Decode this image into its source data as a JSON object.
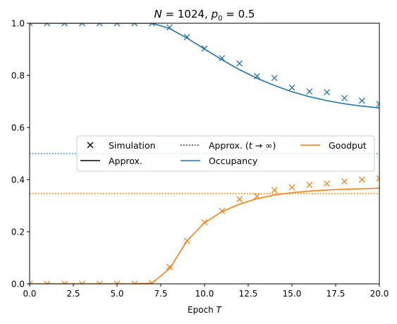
{
  "chart_data": {
    "type": "line",
    "title": "N = 1024, p₀ = 0.5",
    "title_parts": {
      "n_label": "N",
      "n_value": "1024",
      "p_label": "p",
      "p_sub": "0",
      "p_value": "0.5"
    },
    "xlabel": "Epoch T",
    "xlabel_parts": {
      "text": "Epoch ",
      "var": "T"
    },
    "ylabel": "",
    "xlim": [
      0,
      20
    ],
    "ylim": [
      0,
      1
    ],
    "xticks": [
      0.0,
      2.5,
      5.0,
      7.5,
      10.0,
      12.5,
      15.0,
      17.5,
      20.0
    ],
    "xtick_labels": [
      "0.0",
      "2.5",
      "5.0",
      "7.5",
      "10.0",
      "12.5",
      "15.0",
      "17.5",
      "20.0"
    ],
    "yticks": [
      0.0,
      0.2,
      0.4,
      0.6,
      0.8,
      1.0
    ],
    "ytick_labels": [
      "0.0",
      "0.2",
      "0.4",
      "0.6",
      "0.8",
      "1.0"
    ],
    "grid": false,
    "colors": {
      "occupancy": "#1f77b4",
      "goodput": "#ff7f0e",
      "neutral": "#000000"
    },
    "series": [
      {
        "name": "Occupancy",
        "color": "#1f77b4",
        "simulation": {
          "x": [
            0,
            1,
            2,
            3,
            4,
            5,
            6,
            7,
            8,
            9,
            10,
            11,
            12,
            13,
            14,
            15,
            16,
            17,
            18,
            19,
            20
          ],
          "y": [
            1.0,
            1.0,
            1.0,
            1.0,
            1.0,
            1.0,
            1.0,
            1.0,
            0.984,
            0.947,
            0.903,
            0.866,
            0.846,
            0.797,
            0.79,
            0.753,
            0.738,
            0.735,
            0.713,
            0.703,
            0.69
          ]
        },
        "approx": {
          "x": [
            0,
            1,
            2,
            3,
            4,
            5,
            6,
            7,
            8,
            9,
            10,
            11,
            12,
            13,
            14,
            15,
            16,
            17,
            18,
            19,
            20
          ],
          "y": [
            1.0,
            1.0,
            1.0,
            1.0,
            1.0,
            1.0,
            1.0,
            1.0,
            0.98,
            0.943,
            0.901,
            0.86,
            0.822,
            0.789,
            0.761,
            0.737,
            0.718,
            0.703,
            0.691,
            0.682,
            0.675
          ]
        },
        "asymptote": 0.5
      },
      {
        "name": "Goodput",
        "color": "#ff7f0e",
        "simulation": {
          "x": [
            0,
            1,
            2,
            3,
            4,
            5,
            6,
            7,
            8,
            9,
            10,
            11,
            12,
            13,
            14,
            15,
            16,
            17,
            18,
            19,
            20
          ],
          "y": [
            0.0,
            0.0,
            0.0,
            0.0,
            0.0,
            0.0,
            0.0,
            0.003,
            0.065,
            0.165,
            0.236,
            0.28,
            0.325,
            0.336,
            0.36,
            0.37,
            0.38,
            0.385,
            0.393,
            0.4,
            0.405
          ]
        },
        "approx": {
          "x": [
            0,
            1,
            2,
            3,
            4,
            5,
            6,
            7,
            8,
            9,
            10,
            11,
            12,
            13,
            14,
            15,
            16,
            17,
            18,
            19,
            20
          ],
          "y": [
            0.0,
            0.0,
            0.0,
            0.0,
            0.0,
            0.0,
            0.0,
            0.003,
            0.058,
            0.165,
            0.235,
            0.277,
            0.306,
            0.327,
            0.341,
            0.35,
            0.356,
            0.36,
            0.363,
            0.365,
            0.367
          ]
        },
        "asymptote": 0.346
      }
    ],
    "legend": {
      "placement": "center",
      "ncol": 3,
      "items": [
        {
          "label": "Simulation",
          "style": "marker-x"
        },
        {
          "label": "Approx.",
          "style": "solid"
        },
        {
          "label": "Approx. (t → ∞)",
          "style": "dotted",
          "parts": {
            "text": "Approx. (",
            "var": "t",
            "arrow": " → ∞)"
          }
        },
        {
          "label": "Occupancy",
          "style": "solid",
          "color": "#1f77b4"
        },
        {
          "label": "Goodput",
          "style": "solid",
          "color": "#ff7f0e"
        }
      ]
    }
  }
}
